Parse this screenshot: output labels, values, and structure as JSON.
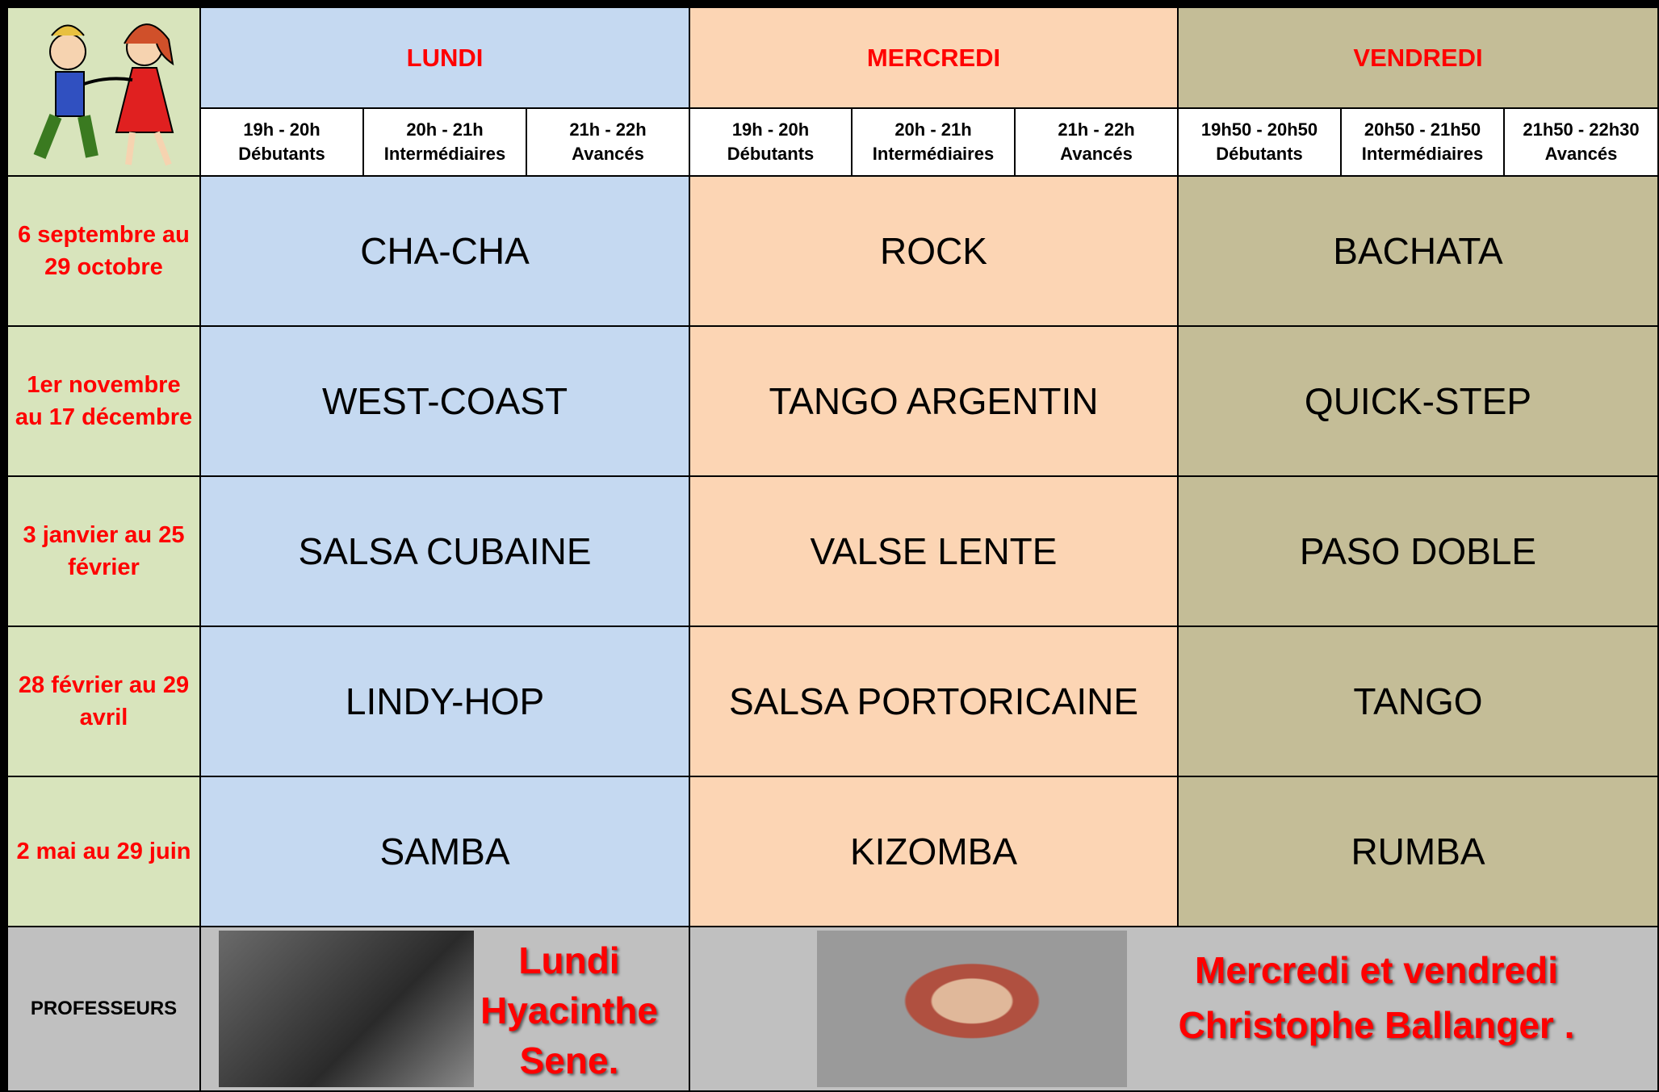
{
  "header": {
    "days": [
      {
        "name": "LUNDI",
        "slots": [
          {
            "time": "19h - 20h",
            "level": "Débutants"
          },
          {
            "time": "20h - 21h",
            "level": "Intermédiaires"
          },
          {
            "time": "21h - 22h",
            "level": "Avancés"
          }
        ]
      },
      {
        "name": "MERCREDI",
        "slots": [
          {
            "time": "19h - 20h",
            "level": "Débutants"
          },
          {
            "time": "20h - 21h",
            "level": "Intermédiaires"
          },
          {
            "time": "21h - 22h",
            "level": "Avancés"
          }
        ]
      },
      {
        "name": "VENDREDI",
        "slots": [
          {
            "time": "19h50 - 20h50",
            "level": "Débutants"
          },
          {
            "time": "20h50 - 21h50",
            "level": "Intermédiaires"
          },
          {
            "time": "21h50 - 22h30",
            "level": "Avancés"
          }
        ]
      }
    ]
  },
  "rows": [
    {
      "period": "6 septembre au 29 octobre",
      "dances": [
        "CHA-CHA",
        "ROCK",
        "BACHATA"
      ]
    },
    {
      "period": "1er novembre au 17 décembre",
      "dances": [
        "WEST-COAST",
        "TANGO ARGENTIN",
        "QUICK-STEP"
      ]
    },
    {
      "period": "3 janvier au 25 février",
      "dances": [
        "SALSA CUBAINE",
        "VALSE LENTE",
        "PASO DOBLE"
      ]
    },
    {
      "period": "28 février au 29 avril",
      "dances": [
        "LINDY-HOP",
        "SALSA PORTORICAINE",
        "TANGO"
      ]
    },
    {
      "period": "2 mai au 29 juin",
      "dances": [
        "SAMBA",
        "KIZOMBA",
        "RUMBA"
      ]
    }
  ],
  "professors": {
    "label": "PROFESSEURS",
    "lundi": [
      "Lundi",
      "Hyacinthe",
      "Sene."
    ],
    "mercredi_vendredi": [
      "Mercredi et vendredi",
      "Christophe Ballanger ."
    ]
  }
}
